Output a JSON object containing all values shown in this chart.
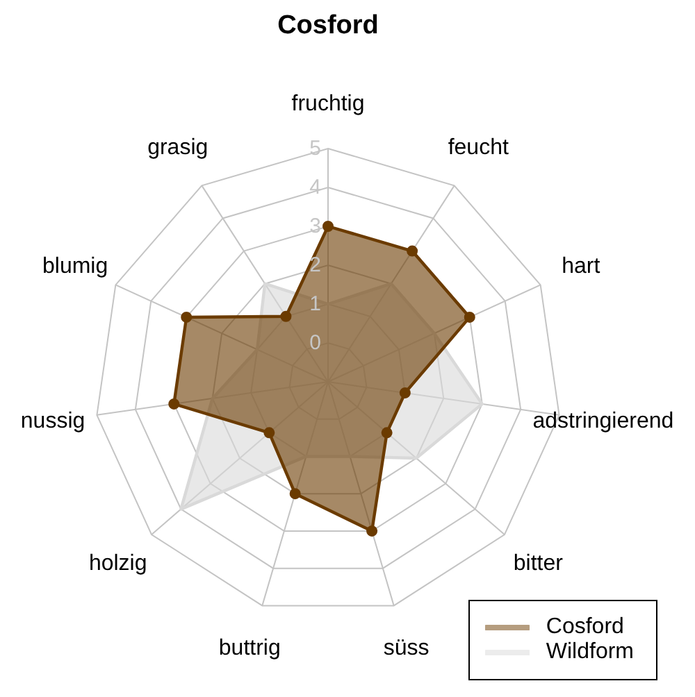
{
  "chart_data": {
    "type": "radar",
    "title": "Cosford",
    "categories": [
      "fruchtig",
      "feucht",
      "hart",
      "adstringierend",
      "bitter",
      "süss",
      "buttrig",
      "holzig",
      "nussig",
      "blumig",
      "grasig"
    ],
    "series": [
      {
        "name": "Cosford",
        "color": "#6b3b00",
        "marker": "circle",
        "values": [
          3,
          3,
          3,
          1,
          1,
          3,
          2,
          1,
          3,
          3,
          1
        ]
      },
      {
        "name": "Wildform",
        "color": "#d9d9d9",
        "values": [
          1,
          2,
          2,
          3,
          2,
          1,
          1,
          4,
          2,
          1,
          2
        ]
      }
    ],
    "ylim": [
      -1,
      5
    ],
    "yticks": [
      0,
      1,
      2,
      3,
      4,
      5
    ],
    "grid": true,
    "legend": "bottom right"
  }
}
